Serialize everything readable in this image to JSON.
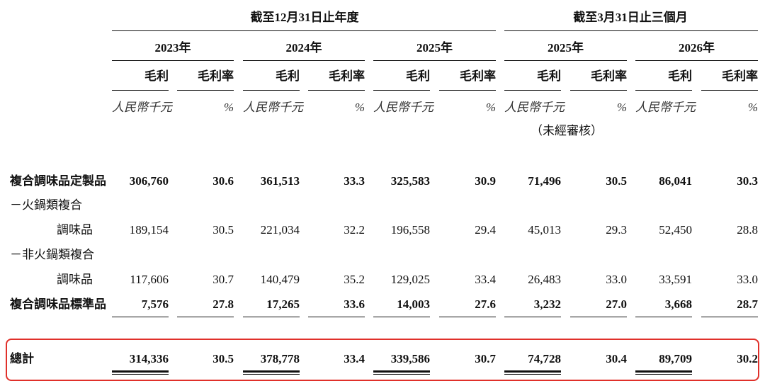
{
  "headers": {
    "groups": [
      "截至12月31日止年度",
      "截至3月31日止三個月"
    ],
    "years": [
      "2023年",
      "2024年",
      "2025年",
      "2025年",
      "2026年"
    ],
    "metric_labels": [
      "毛利",
      "毛利率"
    ],
    "units": [
      "人民幣千元",
      "%"
    ],
    "unaudited": "（未經審核）"
  },
  "rows": [
    {
      "label_lines": [
        "複合調味品定製品"
      ],
      "bold": true,
      "values": [
        "306,760",
        "30.6",
        "361,513",
        "33.3",
        "325,583",
        "30.9",
        "71,496",
        "30.5",
        "86,041",
        "30.3"
      ]
    },
    {
      "label_lines": [
        "－火鍋類複合",
        "調味品"
      ],
      "bold": false,
      "values": [
        "189,154",
        "30.5",
        "221,034",
        "32.2",
        "196,558",
        "29.4",
        "45,013",
        "29.3",
        "52,450",
        "28.8"
      ]
    },
    {
      "label_lines": [
        "－非火鍋類複合",
        "調味品"
      ],
      "bold": false,
      "values": [
        "117,606",
        "30.7",
        "140,479",
        "35.2",
        "129,025",
        "33.4",
        "26,483",
        "33.0",
        "33,591",
        "33.0"
      ]
    },
    {
      "label_lines": [
        "複合調味品標準品"
      ],
      "bold": true,
      "values": [
        "7,576",
        "27.8",
        "17,265",
        "33.6",
        "14,003",
        "27.6",
        "3,232",
        "27.0",
        "3,668",
        "28.7"
      ]
    }
  ],
  "total": {
    "label": "總計",
    "values": [
      "314,336",
      "30.5",
      "378,778",
      "33.4",
      "339,586",
      "30.7",
      "74,728",
      "30.4",
      "89,709",
      "30.2"
    ]
  }
}
